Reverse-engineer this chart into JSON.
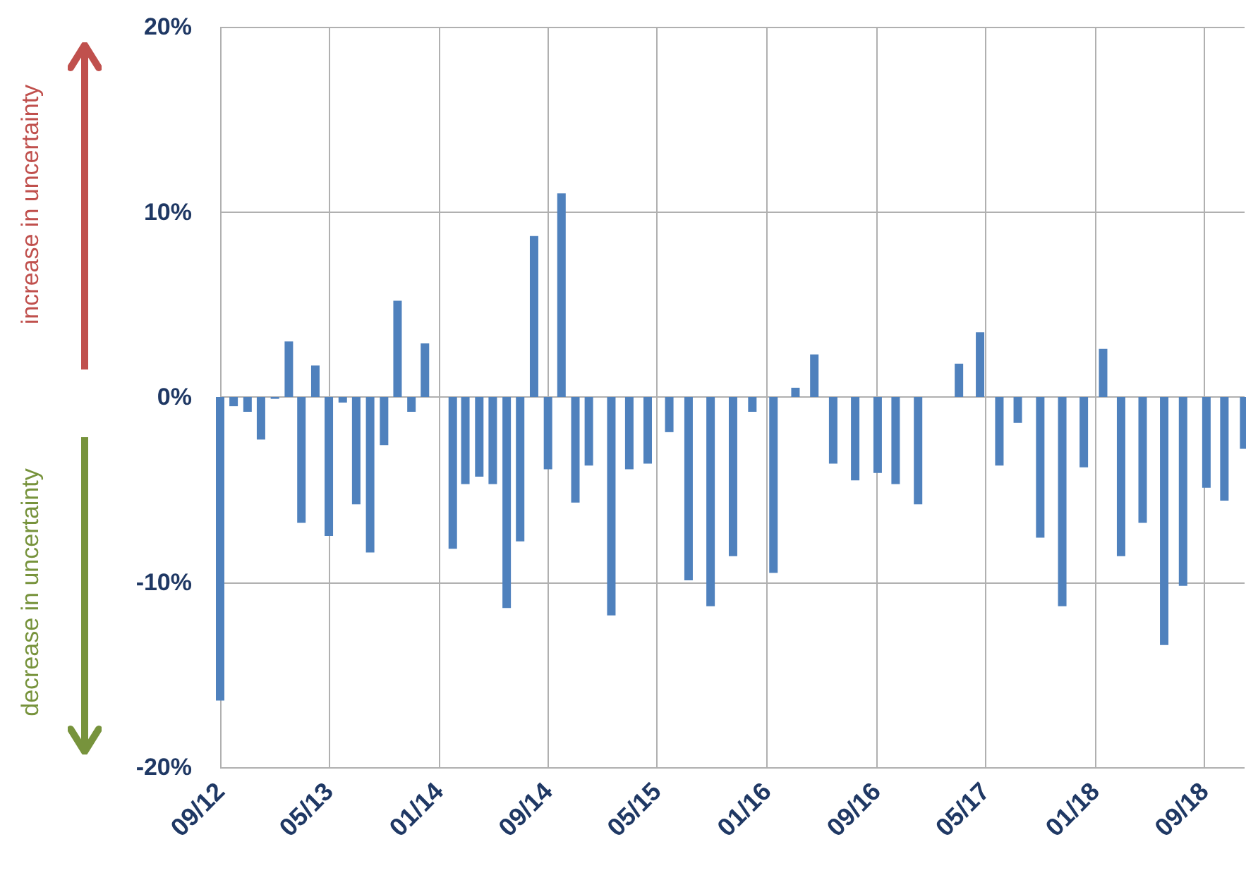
{
  "chart_data": {
    "type": "bar",
    "color": "#4f81bd",
    "x": [
      "2012-09",
      "2012-10",
      "2012-11",
      "2012-12",
      "2013-01",
      "2013-02",
      "2013-03",
      "2013-04",
      "2013-05",
      "2013-06",
      "2013-07",
      "2013-08",
      "2013-09",
      "2013-10",
      "2013-11",
      "2013-12",
      "2014-01",
      "2014-02",
      "2014-03",
      "2014-04",
      "2014-05",
      "2014-06",
      "2014-07",
      "2014-08",
      "2014-09",
      "2014-10",
      "2014-11",
      "2014-12",
      "2015-01-20",
      "2015-03-01",
      "2015-04-11",
      "2015-05-29",
      "2015-07-11",
      "2015-08-29",
      "2015-10-18",
      "2015-11-30",
      "2016-01-16",
      "2016-03-05",
      "2016-04-16",
      "2016-05-28",
      "2016-07-16",
      "2016-09-04",
      "2016-10-14",
      "2016-12-03",
      "2017-01-14",
      "2017-03-04",
      "2017-04-20",
      "2017-06-02",
      "2017-07-13",
      "2017-09-01",
      "2017-10-20",
      "2017-12-07",
      "2018-01-19",
      "2018-02-28",
      "2018-04-17",
      "2018-06-04",
      "2018-07-16",
      "2018-09-06",
      "2018-10-16",
      "2018-11-29"
    ],
    "values": [
      -16.4,
      -0.5,
      -0.8,
      -2.3,
      -0.1,
      3.0,
      -6.8,
      1.7,
      -7.5,
      -0.3,
      -5.8,
      -8.4,
      -2.6,
      5.2,
      -0.8,
      2.9,
      0,
      -8.2,
      -4.7,
      -4.3,
      -4.7,
      -11.4,
      -7.8,
      8.7,
      -3.9,
      11.0,
      -5.7,
      -3.7,
      -11.8,
      -3.9,
      -3.6,
      -1.9,
      -9.9,
      -11.3,
      -8.6,
      -0.8,
      -9.5,
      0.5,
      2.3,
      -3.6,
      -4.5,
      -4.1,
      -4.7,
      -5.8,
      0,
      1.8,
      3.5,
      -3.7,
      -1.4,
      -7.6,
      -11.3,
      -3.8,
      2.6,
      -8.6,
      -6.8,
      -13.4,
      -10.2,
      -4.9,
      -5.6,
      -2.8
    ],
    "xlim": [
      "2012-09",
      "2018-11-30"
    ],
    "xticks": [
      {
        "value": "2012-09",
        "label": "09/12"
      },
      {
        "value": "2013-05",
        "label": "05/13"
      },
      {
        "value": "2014-01",
        "label": "01/14"
      },
      {
        "value": "2014-09",
        "label": "09/14"
      },
      {
        "value": "2015-05",
        "label": "05/15"
      },
      {
        "value": "2016-01",
        "label": "01/16"
      },
      {
        "value": "2016-09",
        "label": "09/16"
      },
      {
        "value": "2017-05",
        "label": "05/17"
      },
      {
        "value": "2018-01",
        "label": "01/18"
      },
      {
        "value": "2018-09",
        "label": "09/18"
      }
    ],
    "ylim": [
      -20,
      20
    ],
    "yticks": [
      {
        "value": -20,
        "label": "-20%"
      },
      {
        "value": -10,
        "label": "-10%"
      },
      {
        "value": 0,
        "label": "0%"
      },
      {
        "value": 10,
        "label": "10%"
      },
      {
        "value": 20,
        "label": "20%"
      }
    ],
    "grid": true,
    "annotations": [
      "increase in uncertainty",
      "decrease in uncertainty"
    ]
  }
}
